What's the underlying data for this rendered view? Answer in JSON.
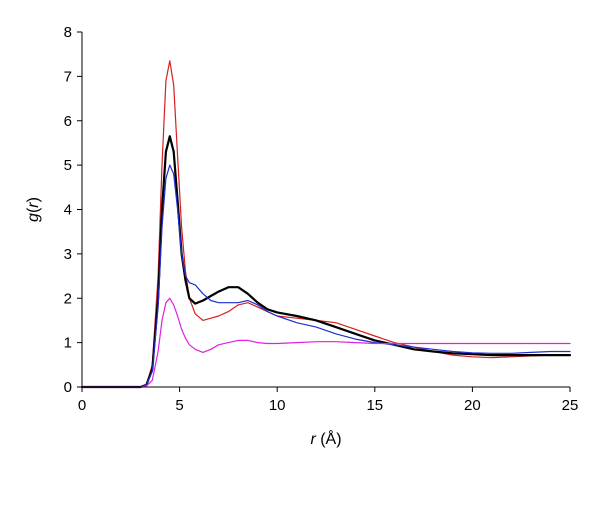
{
  "chart_data": {
    "type": "line",
    "title": "",
    "xlabel": "r (Å)",
    "ylabel": "g(r)",
    "xlim": [
      0,
      25
    ],
    "ylim": [
      0,
      8
    ],
    "x_ticks": [
      "0",
      "5",
      "10",
      "15",
      "20",
      "25"
    ],
    "y_ticks": [
      "0",
      "1",
      "2",
      "3",
      "4",
      "5",
      "6",
      "7",
      "8"
    ],
    "grid": false,
    "legend": "none",
    "series": [
      {
        "color": "#d62020",
        "width": 1.2,
        "x": [
          0,
          3.0,
          3.3,
          3.6,
          3.9,
          4.1,
          4.3,
          4.5,
          4.7,
          4.9,
          5.1,
          5.3,
          5.5,
          5.8,
          6.2,
          6.6,
          7.0,
          7.5,
          8.0,
          8.5,
          9.0,
          9.5,
          10.0,
          11.0,
          12.0,
          13.0,
          14.0,
          15.0,
          16.0,
          17.0,
          18.0,
          19.0,
          20.0,
          21.0,
          22.0,
          23.0,
          24.0,
          25.0
        ],
        "y": [
          0,
          0,
          0.05,
          0.5,
          2.5,
          5.0,
          6.9,
          7.35,
          6.8,
          5.2,
          3.6,
          2.6,
          2.0,
          1.65,
          1.5,
          1.55,
          1.6,
          1.7,
          1.85,
          1.9,
          1.8,
          1.7,
          1.6,
          1.55,
          1.5,
          1.45,
          1.3,
          1.15,
          1.0,
          0.9,
          0.8,
          0.72,
          0.68,
          0.66,
          0.68,
          0.7,
          0.72,
          0.72
        ]
      },
      {
        "color": "#000000",
        "width": 2.2,
        "x": [
          0,
          3.0,
          3.3,
          3.6,
          3.9,
          4.1,
          4.3,
          4.5,
          4.7,
          4.9,
          5.1,
          5.3,
          5.5,
          5.8,
          6.2,
          6.6,
          7.0,
          7.5,
          8.0,
          8.5,
          9.0,
          9.5,
          10.0,
          11.0,
          12.0,
          13.0,
          14.0,
          15.0,
          16.0,
          17.0,
          18.0,
          19.0,
          20.0,
          21.0,
          22.0,
          23.0,
          24.0,
          25.0
        ],
        "y": [
          0,
          0,
          0.05,
          0.4,
          2.0,
          4.0,
          5.3,
          5.65,
          5.3,
          4.2,
          3.0,
          2.4,
          2.0,
          1.88,
          1.95,
          2.05,
          2.15,
          2.25,
          2.25,
          2.1,
          1.9,
          1.75,
          1.68,
          1.6,
          1.5,
          1.35,
          1.2,
          1.05,
          0.95,
          0.85,
          0.8,
          0.76,
          0.74,
          0.72,
          0.72,
          0.72,
          0.72,
          0.72
        ]
      },
      {
        "color": "#1f2fd0",
        "width": 1.2,
        "x": [
          0,
          3.0,
          3.3,
          3.6,
          3.9,
          4.1,
          4.3,
          4.5,
          4.7,
          4.9,
          5.1,
          5.3,
          5.5,
          5.8,
          6.2,
          6.6,
          7.0,
          7.5,
          8.0,
          8.5,
          9.0,
          9.5,
          10.0,
          11.0,
          12.0,
          13.0,
          14.0,
          15.0,
          16.0,
          17.0,
          18.0,
          19.0,
          20.0,
          21.0,
          22.0,
          23.0,
          24.0,
          25.0
        ],
        "y": [
          0,
          0,
          0.05,
          0.35,
          1.8,
          3.6,
          4.7,
          5.0,
          4.8,
          4.0,
          3.0,
          2.5,
          2.35,
          2.3,
          2.1,
          1.95,
          1.9,
          1.9,
          1.9,
          1.95,
          1.85,
          1.7,
          1.6,
          1.45,
          1.35,
          1.2,
          1.08,
          1.0,
          0.95,
          0.9,
          0.85,
          0.8,
          0.77,
          0.76,
          0.76,
          0.78,
          0.8,
          0.8
        ]
      },
      {
        "color": "#e020e0",
        "width": 1.2,
        "x": [
          0,
          3.0,
          3.3,
          3.6,
          3.9,
          4.1,
          4.3,
          4.5,
          4.7,
          4.9,
          5.1,
          5.3,
          5.5,
          5.8,
          6.2,
          6.6,
          7.0,
          7.5,
          8.0,
          8.5,
          9.0,
          9.5,
          10.0,
          11.0,
          12.0,
          13.0,
          14.0,
          15.0,
          16.0,
          17.0,
          18.0,
          19.0,
          20.0,
          21.0,
          22.0,
          23.0,
          24.0,
          25.0
        ],
        "y": [
          0,
          0,
          0.02,
          0.15,
          0.8,
          1.5,
          1.9,
          2.0,
          1.85,
          1.6,
          1.3,
          1.1,
          0.95,
          0.85,
          0.78,
          0.85,
          0.95,
          1.0,
          1.05,
          1.05,
          1.0,
          0.98,
          0.98,
          1.0,
          1.02,
          1.02,
          1.0,
          0.98,
          0.98,
          0.98,
          0.98,
          0.98,
          0.98,
          0.98,
          0.98,
          0.98,
          0.98,
          0.98
        ]
      }
    ]
  }
}
